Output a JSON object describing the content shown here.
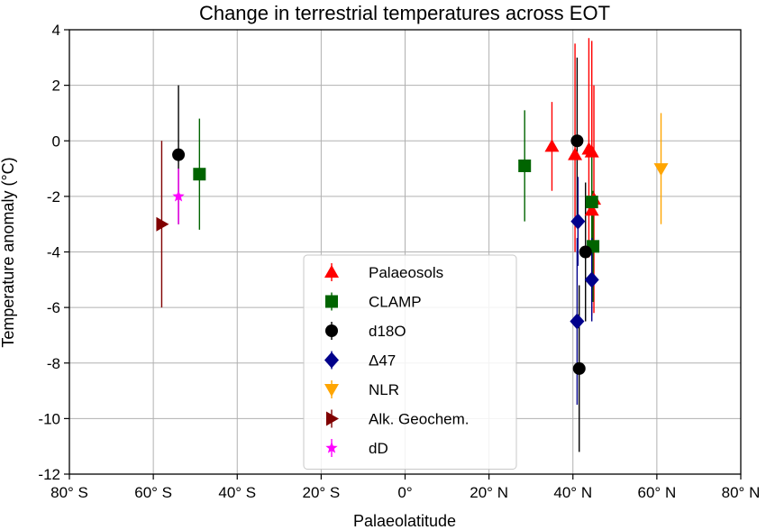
{
  "chart_data": {
    "type": "scatter",
    "title": "Change in terrestrial temperatures across EOT",
    "xlabel": "Palaeolatitude",
    "ylabel": "Temperature anomaly (°C)",
    "xlim": [
      -80,
      80
    ],
    "ylim": [
      -12,
      4
    ],
    "xticks": [
      {
        "value": -80,
        "label": "80° S"
      },
      {
        "value": -60,
        "label": "60° S"
      },
      {
        "value": -40,
        "label": "40° S"
      },
      {
        "value": -20,
        "label": "20° S"
      },
      {
        "value": 0,
        "label": "0°"
      },
      {
        "value": 20,
        "label": "20° N"
      },
      {
        "value": 40,
        "label": "40° N"
      },
      {
        "value": 60,
        "label": "60° N"
      },
      {
        "value": 80,
        "label": "80° N"
      }
    ],
    "yticks": [
      {
        "value": 4,
        "label": "4"
      },
      {
        "value": 2,
        "label": "2"
      },
      {
        "value": 0,
        "label": "0"
      },
      {
        "value": -2,
        "label": "-2"
      },
      {
        "value": -4,
        "label": "-4"
      },
      {
        "value": -6,
        "label": "-6"
      },
      {
        "value": -8,
        "label": "-8"
      },
      {
        "value": -10,
        "label": "-10"
      },
      {
        "value": -12,
        "label": "-12"
      }
    ],
    "grid": true,
    "legend_position": "bottom-center",
    "series": [
      {
        "name": "Palaeosols",
        "marker": "triangle-up",
        "color": "#ff0000",
        "points": [
          {
            "x": 35.0,
            "y": -0.2,
            "lo": -1.8,
            "hi": 1.4
          },
          {
            "x": 40.5,
            "y": -0.5,
            "lo": -4.0,
            "hi": 3.5
          },
          {
            "x": 43.8,
            "y": -0.3,
            "lo": -4.2,
            "hi": 3.7
          },
          {
            "x": 44.5,
            "y": -0.4,
            "lo": -4.2,
            "hi": 3.6
          },
          {
            "x": 44.5,
            "y": -2.5,
            "lo": -6.3,
            "hi": 2.0
          },
          {
            "x": 45.0,
            "y": -2.1,
            "lo": -6.2,
            "hi": 2.0
          }
        ]
      },
      {
        "name": "CLAMP",
        "marker": "square",
        "color": "#006400",
        "points": [
          {
            "x": -49.0,
            "y": -1.2,
            "lo": -3.2,
            "hi": 0.8
          },
          {
            "x": 28.5,
            "y": -0.9,
            "lo": -2.9,
            "hi": 1.1
          },
          {
            "x": 44.5,
            "y": -2.2,
            "lo": -4.2,
            "hi": -0.2
          },
          {
            "x": 44.8,
            "y": -3.8,
            "lo": -5.8,
            "hi": -1.8
          }
        ]
      },
      {
        "name": "d18O",
        "marker": "circle",
        "color": "#000000",
        "points": [
          {
            "x": -54.0,
            "y": -0.5,
            "lo": -3.0,
            "hi": 2.0
          },
          {
            "x": 41.0,
            "y": 0.0,
            "lo": -3.0,
            "hi": 3.0
          },
          {
            "x": 41.5,
            "y": -8.2,
            "lo": -11.2,
            "hi": -5.2
          },
          {
            "x": 43.0,
            "y": -4.0,
            "lo": -6.5,
            "hi": -1.5
          }
        ]
      },
      {
        "name": "Δ47",
        "marker": "diamond",
        "color": "#00008b",
        "points": [
          {
            "x": 41.2,
            "y": -2.9,
            "lo": -4.5,
            "hi": -1.3
          },
          {
            "x": 41.0,
            "y": -6.5,
            "lo": -9.5,
            "hi": -3.5
          },
          {
            "x": 44.5,
            "y": -5.0,
            "lo": -6.5,
            "hi": -3.5
          }
        ]
      },
      {
        "name": "NLR",
        "marker": "triangle-down",
        "color": "#ffa500",
        "points": [
          {
            "x": 61.0,
            "y": -1.0,
            "lo": -3.0,
            "hi": 1.0
          }
        ]
      },
      {
        "name": "Alk. Geochem.",
        "marker": "triangle-right",
        "color": "#800000",
        "points": [
          {
            "x": -58.0,
            "y": -3.0,
            "lo": -6.0,
            "hi": 0.0
          }
        ]
      },
      {
        "name": "dD",
        "marker": "star",
        "color": "#ff00ff",
        "points": [
          {
            "x": -54.0,
            "y": -2.0,
            "lo": -3.0,
            "hi": -1.0
          }
        ]
      }
    ]
  }
}
